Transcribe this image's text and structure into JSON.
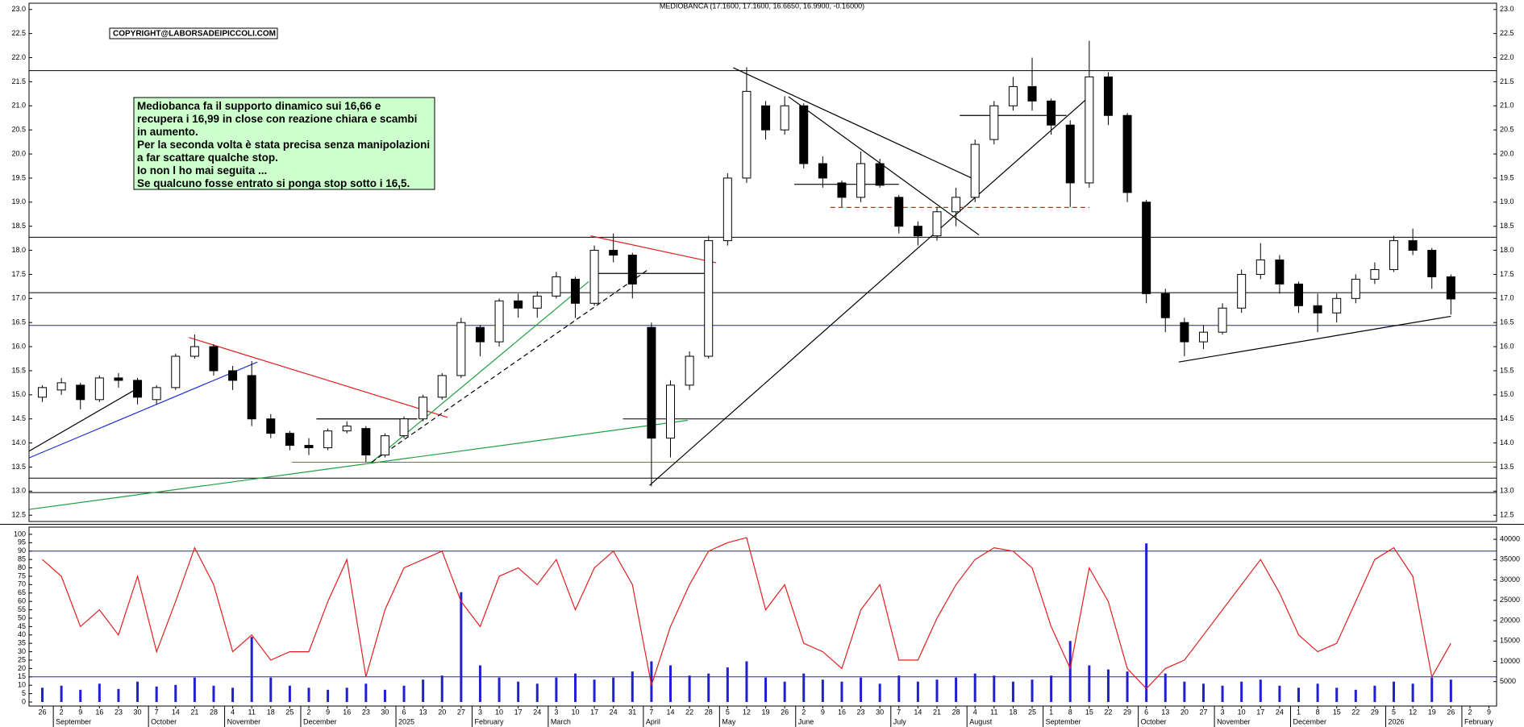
{
  "chart_data": {
    "type": "candlestick",
    "title": "MEDIOBANCA (17.1600, 17.1600, 16.6650, 16.9900, -0.16000)",
    "copyright": "COPYRIGHT@LABORSADEIPICCOLI.COM",
    "annotation": {
      "lines": [
        "Mediobanca fa il supporto dinamico sui 16,66 e",
        "recupera i 16,99 in close con reazione chiara e scambi",
        "in aumento.",
        "Per la seconda volta è stata precisa senza manipolazioni",
        "a far scattare qualche stop.",
        "Io non l ho mai seguita ...",
        "Se qualcuno fosse entrato si ponga stop sotto i 16,5."
      ]
    },
    "categories": [
      "26",
      "2",
      "9",
      "16",
      "23",
      "30",
      "7",
      "14",
      "21",
      "28",
      "4",
      "11",
      "18",
      "25",
      "2",
      "9",
      "16",
      "23",
      "30",
      "6",
      "13",
      "20",
      "27",
      "3",
      "10",
      "17",
      "24",
      "3",
      "10",
      "17",
      "24",
      "31",
      "7",
      "14",
      "22",
      "28",
      "5",
      "12",
      "19",
      "26",
      "2",
      "9",
      "16",
      "23",
      "30",
      "7",
      "14",
      "21",
      "28",
      "4",
      "11",
      "18",
      "25",
      "1",
      "8",
      "15",
      "22",
      "29",
      "6",
      "13",
      "20",
      "27",
      "3",
      "10",
      "17",
      "24",
      "1",
      "8",
      "15",
      "22",
      "29",
      "5",
      "12",
      "19",
      "26",
      "2",
      "9"
    ],
    "month_ticks": [
      {
        "value": 1,
        "label": "September"
      },
      {
        "value": 6,
        "label": "October"
      },
      {
        "value": 10,
        "label": "November"
      },
      {
        "value": 14,
        "label": "December"
      },
      {
        "value": 19,
        "label": "2025"
      },
      {
        "value": 23,
        "label": "February"
      },
      {
        "value": 27,
        "label": "March"
      },
      {
        "value": 32,
        "label": "April"
      },
      {
        "value": 36,
        "label": "May"
      },
      {
        "value": 40,
        "label": "June"
      },
      {
        "value": 45,
        "label": "July"
      },
      {
        "value": 49,
        "label": "August"
      },
      {
        "value": 53,
        "label": "September"
      },
      {
        "value": 58,
        "label": "October"
      },
      {
        "value": 62,
        "label": "November"
      },
      {
        "value": 66,
        "label": "December"
      },
      {
        "value": 71,
        "label": "2026"
      },
      {
        "value": 75,
        "label": "February"
      }
    ],
    "xlim": [
      -0.7,
      76.4
    ],
    "open": [
      14.95,
      15.1,
      15.2,
      14.9,
      15.35,
      15.3,
      14.9,
      15.15,
      15.8,
      16.0,
      15.5,
      15.4,
      14.5,
      14.2,
      13.95,
      13.9,
      14.25,
      14.3,
      13.75,
      14.15,
      14.5,
      14.95,
      15.4,
      16.4,
      16.1,
      16.95,
      16.8,
      17.05,
      17.4,
      16.9,
      18.0,
      17.9,
      16.4,
      14.1,
      15.2,
      15.8,
      18.2,
      19.5,
      21.0,
      20.5,
      21.0,
      19.8,
      19.4,
      19.1,
      19.8,
      19.1,
      18.5,
      18.3,
      18.8,
      19.1,
      20.3,
      21.0,
      21.4,
      21.1,
      20.6,
      19.4,
      21.6,
      20.8,
      19.0,
      17.1,
      16.5,
      16.1,
      16.3,
      16.8,
      17.5,
      17.8,
      17.3,
      16.85,
      16.7,
      17.0,
      17.4,
      17.6,
      18.2,
      18.0,
      17.45,
      null,
      null
    ],
    "high": [
      15.2,
      15.35,
      15.25,
      15.4,
      15.45,
      15.35,
      15.2,
      15.85,
      16.25,
      16.05,
      15.6,
      15.7,
      14.6,
      14.25,
      14.1,
      14.3,
      14.45,
      14.35,
      14.2,
      14.55,
      15.0,
      15.45,
      16.6,
      16.45,
      17.0,
      17.1,
      17.15,
      17.55,
      17.45,
      18.1,
      18.35,
      17.95,
      16.5,
      15.3,
      15.9,
      18.3,
      19.6,
      21.8,
      21.1,
      21.2,
      21.05,
      19.95,
      19.45,
      20.05,
      19.9,
      19.15,
      18.6,
      18.9,
      19.3,
      20.3,
      21.1,
      21.6,
      22.0,
      21.15,
      20.7,
      22.35,
      21.7,
      20.85,
      19.05,
      17.2,
      16.6,
      16.45,
      16.9,
      17.6,
      18.15,
      17.9,
      17.35,
      17.1,
      17.1,
      17.5,
      17.75,
      18.3,
      18.45,
      18.05,
      17.5,
      null,
      null
    ],
    "low": [
      14.85,
      15.0,
      14.7,
      14.85,
      15.15,
      14.8,
      14.8,
      15.1,
      15.75,
      15.4,
      15.1,
      14.35,
      14.1,
      13.85,
      13.75,
      13.85,
      14.2,
      13.6,
      13.7,
      14.1,
      14.45,
      14.9,
      15.35,
      15.8,
      16.0,
      16.6,
      16.6,
      17.0,
      16.6,
      16.85,
      17.75,
      17.0,
      13.1,
      13.7,
      15.1,
      15.75,
      18.1,
      19.4,
      20.3,
      20.4,
      19.7,
      19.3,
      18.9,
      19.0,
      19.3,
      18.35,
      18.1,
      18.2,
      18.5,
      19.0,
      20.2,
      20.9,
      20.9,
      20.4,
      18.9,
      19.3,
      20.6,
      19.0,
      16.9,
      16.3,
      15.8,
      15.95,
      16.25,
      16.7,
      17.4,
      17.1,
      16.7,
      16.3,
      16.5,
      16.9,
      17.3,
      17.55,
      17.9,
      17.2,
      16.665,
      null,
      null
    ],
    "close": [
      15.15,
      15.25,
      14.9,
      15.35,
      15.3,
      14.95,
      15.15,
      15.8,
      16.0,
      15.5,
      15.3,
      14.5,
      14.2,
      13.95,
      13.9,
      14.25,
      14.35,
      13.75,
      14.15,
      14.5,
      14.95,
      15.4,
      16.5,
      16.1,
      16.95,
      16.8,
      17.05,
      17.45,
      16.9,
      18.0,
      17.9,
      17.3,
      14.1,
      15.2,
      15.8,
      18.2,
      19.5,
      21.3,
      20.5,
      21.0,
      19.8,
      19.5,
      19.1,
      19.8,
      19.35,
      18.5,
      18.3,
      18.8,
      19.1,
      20.2,
      21.0,
      21.4,
      21.1,
      20.6,
      19.4,
      21.6,
      20.8,
      19.2,
      17.1,
      16.6,
      16.1,
      16.3,
      16.8,
      17.5,
      17.8,
      17.3,
      16.85,
      16.7,
      17.0,
      17.4,
      17.6,
      18.2,
      18.0,
      17.45,
      16.99,
      null,
      null
    ],
    "ylim": [
      12.37,
      23.13
    ],
    "yticks": [
      12.5,
      {
        "value": 13,
        "label": "13.0"
      },
      13.5,
      {
        "value": 14,
        "label": "14.0"
      },
      14.5,
      {
        "value": 15,
        "label": "15.0"
      },
      15.5,
      {
        "value": 16,
        "label": "16.0"
      },
      16.5,
      {
        "value": 17,
        "label": "17.0"
      },
      17.5,
      {
        "value": 18,
        "label": "18.0"
      },
      18.5,
      {
        "value": 19,
        "label": "19.0"
      },
      19.5,
      {
        "value": 20,
        "label": "20.0"
      },
      20.5,
      {
        "value": 21,
        "label": "21.0"
      },
      21.5,
      {
        "value": 22,
        "label": "22.0"
      },
      22.5,
      {
        "value": 23,
        "label": "23.0"
      }
    ],
    "hlines": [
      {
        "value": 21.73,
        "color": "#000000"
      },
      {
        "value": 18.27,
        "color": "#000000"
      },
      {
        "value": 17.12,
        "color": "#000000"
      },
      {
        "value": 16.44,
        "color": "#2020d0"
      },
      {
        "value": 14.5,
        "color": "#000000",
        "from": 30.5
      },
      {
        "value": 13.6,
        "color": "#20a040",
        "from": 13.1
      },
      {
        "value": 13.27,
        "color": "#000000"
      },
      {
        "value": 12.97,
        "color": "#000000"
      }
    ],
    "trendlines": [
      {
        "color": "#000000",
        "x": [
          -0.7,
          5.2
        ],
        "y": [
          13.83,
          15.18
        ]
      },
      {
        "color": "#2030d0",
        "x": [
          -0.7,
          11.3
        ],
        "y": [
          13.69,
          15.68
        ]
      },
      {
        "color": "#e02020",
        "x": [
          7.7,
          21.3
        ],
        "y": [
          16.19,
          14.53
        ]
      },
      {
        "color": "#20a040",
        "x": [
          -0.7,
          33.9
        ],
        "y": [
          12.62,
          14.47
        ]
      },
      {
        "color": "#20a040",
        "x": [
          17.3,
          28.7
        ],
        "y": [
          13.6,
          17.35
        ]
      },
      {
        "color": "#000000",
        "dash": true,
        "x": [
          17.3,
          31.9
        ],
        "y": [
          13.6,
          17.62
        ]
      },
      {
        "color": "#e02020",
        "x": [
          28.8,
          35.4
        ],
        "y": [
          18.3,
          17.74
        ]
      },
      {
        "color": "#000000",
        "x": [
          31.9,
          55
        ],
        "y": [
          13.12,
          21.19
        ]
      },
      {
        "color": "#000000",
        "x": [
          36.3,
          49.2
        ],
        "y": [
          21.79,
          19.43
        ]
      },
      {
        "color": "#000000",
        "x": [
          39.2,
          49.2
        ],
        "y": [
          21.19,
          18.32
        ]
      },
      {
        "color": "#e02020",
        "dash": true,
        "x": [
          41.4,
          55
        ],
        "y": [
          18.89,
          18.89
        ]
      },
      {
        "color": "#000000",
        "x": [
          14.4,
          19.7
        ],
        "y": [
          14.5,
          14.5
        ]
      },
      {
        "color": "#000000",
        "x": [
          28.9,
          35.2
        ],
        "y": [
          17.52,
          17.52
        ]
      },
      {
        "color": "#000000",
        "x": [
          39.5,
          45
        ],
        "y": [
          19.37,
          19.37
        ]
      },
      {
        "color": "#000000",
        "x": [
          48.2,
          53.8
        ],
        "y": [
          20.8,
          20.8
        ]
      },
      {
        "color": "#000000",
        "x": [
          59.7,
          74
        ],
        "y": [
          15.68,
          16.63
        ]
      }
    ],
    "oscillator": {
      "color": "#e02020",
      "values": [
        85,
        75,
        45,
        55,
        40,
        75,
        30,
        60,
        92,
        70,
        30,
        40,
        25,
        30,
        30,
        60,
        85,
        15,
        55,
        80,
        85,
        90,
        60,
        45,
        75,
        80,
        70,
        85,
        55,
        80,
        90,
        70,
        10,
        45,
        70,
        90,
        95,
        98,
        55,
        70,
        35,
        30,
        20,
        55,
        70,
        25,
        25,
        50,
        70,
        85,
        92,
        90,
        80,
        45,
        20,
        80,
        60,
        20,
        8,
        20,
        25,
        40,
        55,
        70,
        85,
        65,
        40,
        30,
        35,
        60,
        85,
        92,
        75,
        15,
        35,
        null,
        null
      ],
      "levels": [
        90,
        15
      ],
      "level_color": "#2020d0"
    },
    "osc_ylim": [
      -2.4,
      104.3
    ],
    "osc_ticks": [
      0,
      5,
      10,
      15,
      20,
      25,
      30,
      35,
      40,
      45,
      50,
      55,
      60,
      65,
      70,
      75,
      80,
      85,
      90,
      95,
      100
    ],
    "volume": {
      "color": "#2020d0",
      "axis": "y2",
      "values": [
        3500,
        4000,
        3000,
        4500,
        3200,
        5000,
        3800,
        4200,
        6000,
        4000,
        3500,
        16000,
        6000,
        4000,
        3500,
        3000,
        3500,
        4500,
        3000,
        4000,
        5500,
        6500,
        27000,
        9000,
        6000,
        5000,
        4500,
        6000,
        7000,
        5500,
        6000,
        7500,
        10000,
        9000,
        6500,
        7000,
        8500,
        10000,
        6000,
        5000,
        7000,
        5500,
        5000,
        6000,
        4500,
        6500,
        5000,
        5500,
        6000,
        7000,
        6500,
        5000,
        5500,
        6500,
        15000,
        9000,
        8000,
        7500,
        39000,
        7000,
        5000,
        4500,
        4000,
        5000,
        5500,
        4000,
        3500,
        4500,
        3500,
        3000,
        4000,
        5000,
        4500,
        6000,
        5500,
        null,
        null
      ]
    },
    "y2lim": [
      -1000,
      43000
    ],
    "y2ticks": [
      5000,
      10000,
      15000,
      20000,
      25000,
      30000,
      35000,
      40000
    ]
  }
}
